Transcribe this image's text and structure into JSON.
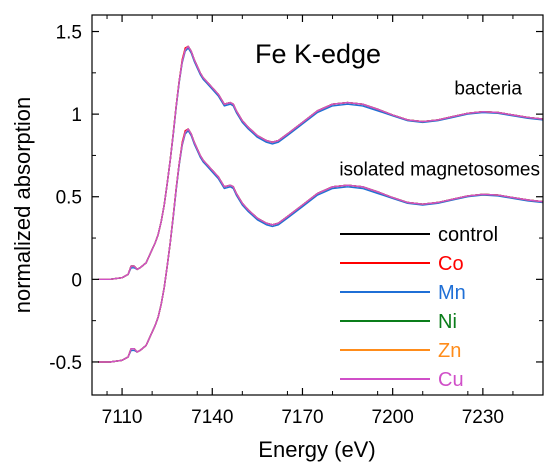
{
  "chart_data": {
    "type": "line",
    "title": "Fe K-edge",
    "xlabel": "Energy (eV)",
    "ylabel": "normalized absorption",
    "xlim": [
      7100,
      7250
    ],
    "ylim": [
      -0.7,
      1.6
    ],
    "x_ticks": [
      7110,
      7140,
      7170,
      7200,
      7230
    ],
    "y_ticks": [
      -0.5,
      0,
      0.5,
      1,
      1.5
    ],
    "y_tick_labels": [
      "-0.5",
      "0",
      "0.5",
      "1",
      "1.5"
    ],
    "grid": false,
    "legend_position": "lower-right",
    "annotations": [
      {
        "text": "bacteria",
        "x": 7243,
        "y": 1.12
      },
      {
        "text": "isolated magnetosomes",
        "x": 7249,
        "y": 0.63
      }
    ],
    "groups": [
      {
        "name": "bacteria",
        "offset": 0.0
      },
      {
        "name": "isolated magnetosomes",
        "offset": -0.5
      }
    ],
    "x": [
      7102,
      7106,
      7110,
      7112,
      7113,
      7114,
      7115,
      7116,
      7118,
      7120,
      7121,
      7122,
      7123,
      7124,
      7125,
      7126,
      7127,
      7128,
      7129,
      7130,
      7131,
      7132,
      7133,
      7134,
      7135,
      7136,
      7137,
      7138,
      7140,
      7142,
      7144,
      7146,
      7147,
      7148,
      7150,
      7152,
      7155,
      7158,
      7160,
      7162,
      7165,
      7170,
      7175,
      7180,
      7185,
      7190,
      7195,
      7200,
      7205,
      7210,
      7215,
      7220,
      7225,
      7230,
      7235,
      7240,
      7245,
      7250
    ],
    "series": [
      {
        "name": "control",
        "color": "#000000",
        "values": [
          0.0,
          0.0,
          0.01,
          0.03,
          0.08,
          0.08,
          0.06,
          0.07,
          0.1,
          0.18,
          0.22,
          0.27,
          0.35,
          0.45,
          0.58,
          0.72,
          0.88,
          1.05,
          1.2,
          1.32,
          1.39,
          1.41,
          1.38,
          1.33,
          1.29,
          1.25,
          1.22,
          1.2,
          1.16,
          1.12,
          1.06,
          1.07,
          1.06,
          1.02,
          0.96,
          0.92,
          0.87,
          0.84,
          0.83,
          0.84,
          0.88,
          0.95,
          1.02,
          1.06,
          1.07,
          1.06,
          1.03,
          0.995,
          0.965,
          0.955,
          0.965,
          0.985,
          1.005,
          1.015,
          1.01,
          0.995,
          0.98,
          0.97
        ]
      },
      {
        "name": "Co",
        "color": "#ff0000",
        "values": [
          0.0,
          0.0,
          0.01,
          0.03,
          0.08,
          0.08,
          0.06,
          0.07,
          0.1,
          0.18,
          0.22,
          0.27,
          0.35,
          0.45,
          0.58,
          0.72,
          0.88,
          1.05,
          1.2,
          1.33,
          1.4,
          1.41,
          1.38,
          1.33,
          1.29,
          1.25,
          1.22,
          1.2,
          1.16,
          1.12,
          1.06,
          1.07,
          1.06,
          1.02,
          0.96,
          0.92,
          0.87,
          0.84,
          0.83,
          0.84,
          0.88,
          0.95,
          1.02,
          1.06,
          1.07,
          1.06,
          1.03,
          0.995,
          0.965,
          0.955,
          0.965,
          0.985,
          1.005,
          1.015,
          1.01,
          0.995,
          0.98,
          0.97
        ]
      },
      {
        "name": "Mn",
        "color": "#1f6fd6",
        "values": [
          0.0,
          0.0,
          0.01,
          0.03,
          0.07,
          0.07,
          0.06,
          0.07,
          0.1,
          0.18,
          0.22,
          0.27,
          0.35,
          0.45,
          0.58,
          0.72,
          0.87,
          1.04,
          1.19,
          1.31,
          1.38,
          1.4,
          1.37,
          1.32,
          1.28,
          1.24,
          1.21,
          1.19,
          1.15,
          1.11,
          1.05,
          1.06,
          1.05,
          1.01,
          0.95,
          0.91,
          0.86,
          0.83,
          0.82,
          0.83,
          0.87,
          0.94,
          1.01,
          1.05,
          1.06,
          1.05,
          1.02,
          0.99,
          0.96,
          0.95,
          0.96,
          0.98,
          1.0,
          1.01,
          1.005,
          0.99,
          0.975,
          0.965
        ]
      },
      {
        "name": "Ni",
        "color": "#0a7d1a",
        "values": [
          0.0,
          0.0,
          0.01,
          0.03,
          0.08,
          0.08,
          0.06,
          0.07,
          0.1,
          0.18,
          0.22,
          0.27,
          0.35,
          0.45,
          0.58,
          0.72,
          0.88,
          1.05,
          1.2,
          1.32,
          1.39,
          1.41,
          1.38,
          1.33,
          1.29,
          1.25,
          1.22,
          1.2,
          1.16,
          1.12,
          1.06,
          1.07,
          1.06,
          1.02,
          0.96,
          0.92,
          0.87,
          0.84,
          0.83,
          0.84,
          0.88,
          0.95,
          1.02,
          1.06,
          1.07,
          1.06,
          1.03,
          0.995,
          0.965,
          0.955,
          0.965,
          0.985,
          1.005,
          1.015,
          1.01,
          0.995,
          0.98,
          0.97
        ]
      },
      {
        "name": "Zn",
        "color": "#ff8c1a",
        "values": [
          0.0,
          0.0,
          0.01,
          0.03,
          0.08,
          0.08,
          0.06,
          0.07,
          0.1,
          0.18,
          0.22,
          0.27,
          0.35,
          0.45,
          0.58,
          0.72,
          0.88,
          1.05,
          1.2,
          1.32,
          1.39,
          1.41,
          1.38,
          1.33,
          1.29,
          1.25,
          1.22,
          1.2,
          1.16,
          1.12,
          1.06,
          1.07,
          1.06,
          1.02,
          0.96,
          0.92,
          0.87,
          0.84,
          0.83,
          0.84,
          0.88,
          0.95,
          1.02,
          1.06,
          1.07,
          1.06,
          1.03,
          0.995,
          0.965,
          0.955,
          0.965,
          0.985,
          1.005,
          1.015,
          1.01,
          0.995,
          0.98,
          0.97
        ]
      },
      {
        "name": "Cu",
        "color": "#d04fc8",
        "values": [
          0.0,
          0.0,
          0.01,
          0.03,
          0.08,
          0.08,
          0.06,
          0.07,
          0.1,
          0.18,
          0.22,
          0.27,
          0.35,
          0.45,
          0.58,
          0.72,
          0.88,
          1.05,
          1.2,
          1.32,
          1.39,
          1.41,
          1.38,
          1.33,
          1.29,
          1.25,
          1.22,
          1.2,
          1.16,
          1.12,
          1.06,
          1.07,
          1.06,
          1.02,
          0.96,
          0.92,
          0.87,
          0.84,
          0.83,
          0.84,
          0.88,
          0.95,
          1.02,
          1.06,
          1.07,
          1.06,
          1.03,
          0.995,
          0.965,
          0.955,
          0.965,
          0.985,
          1.005,
          1.015,
          1.01,
          0.995,
          0.98,
          0.97
        ]
      }
    ]
  }
}
